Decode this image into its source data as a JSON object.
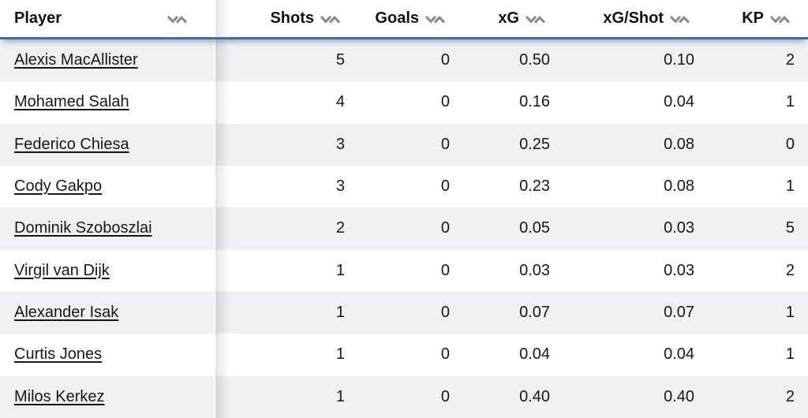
{
  "table": {
    "columns": [
      {
        "label": "Player"
      },
      {
        "label": "Shots"
      },
      {
        "label": "Goals"
      },
      {
        "label": "xG"
      },
      {
        "label": "xG/Shot"
      },
      {
        "label": "KP"
      }
    ],
    "rows": [
      [
        "Alexis MacAllister",
        "5",
        "0",
        "0.50",
        "0.10",
        "2"
      ],
      [
        "Mohamed Salah",
        "4",
        "0",
        "0.16",
        "0.04",
        "1"
      ],
      [
        "Federico Chiesa",
        "3",
        "0",
        "0.25",
        "0.08",
        "0"
      ],
      [
        "Cody Gakpo",
        "3",
        "0",
        "0.23",
        "0.08",
        "1"
      ],
      [
        "Dominik Szoboszlai",
        "2",
        "0",
        "0.05",
        "0.03",
        "5"
      ],
      [
        "Virgil van Dijk",
        "1",
        "0",
        "0.03",
        "0.03",
        "2"
      ],
      [
        "Alexander Isak",
        "1",
        "0",
        "0.07",
        "0.07",
        "1"
      ],
      [
        "Curtis Jones",
        "1",
        "0",
        "0.04",
        "0.04",
        "1"
      ],
      [
        "Milos Kerkez",
        "1",
        "0",
        "0.40",
        "0.40",
        "2"
      ]
    ]
  },
  "icons": {
    "sort": "sort-chevrons"
  },
  "colors": {
    "header_underline": "#426aa9",
    "row_stripe": "#edf0f5",
    "row_plain": "#ffffff",
    "sort_icon": "#878b92",
    "text": "#15171a"
  }
}
